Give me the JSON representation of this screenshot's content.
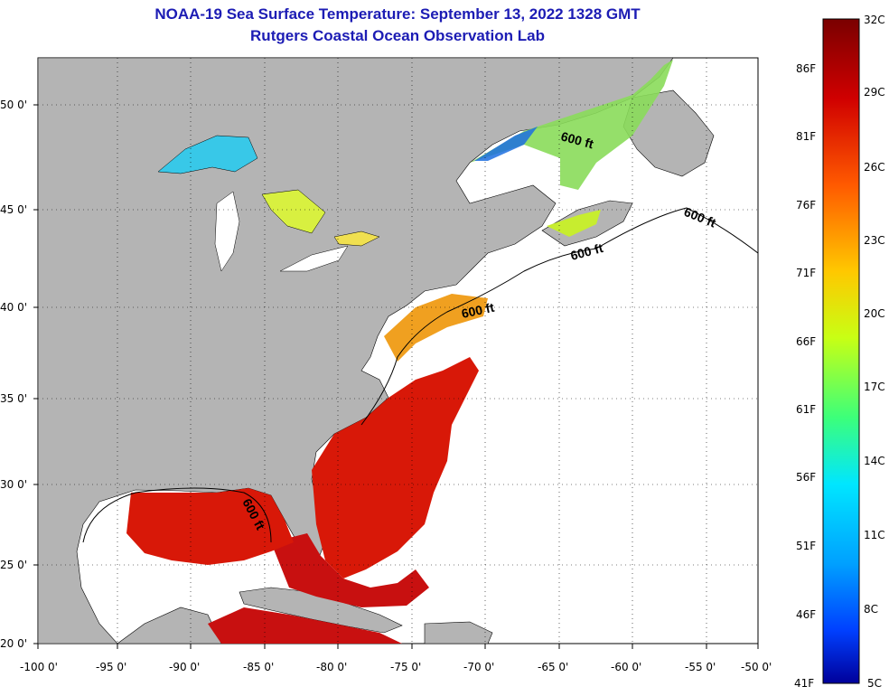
{
  "title": {
    "line1": "NOAA-19 Sea Surface Temperature:  September 13, 2022 1328 GMT",
    "line2": "Rutgers Coastal Ocean Observation Lab"
  },
  "map": {
    "lon_range": [
      -100,
      -50
    ],
    "lat_range": [
      20,
      52.5
    ],
    "lon_ticks": [
      "-100 0'",
      "-95 0'",
      "-90 0'",
      "-85 0'",
      "-80 0'",
      "-75 0'",
      "-70 0'",
      "-65 0'",
      "-60 0'",
      "-55 0'",
      "-50 0'"
    ],
    "lat_ticks": [
      "50 0'",
      "45 0'",
      "40 0'",
      "35 0'",
      "30 0'",
      "25 0'",
      "20 0'"
    ],
    "grid": "dotted",
    "land_color": "#b4b4b4",
    "no_data_color": "#ffffff",
    "contour_labels": [
      "600 ft",
      "600 ft",
      "600 ft",
      "600 ft",
      "600 ft"
    ]
  },
  "colorbar": {
    "celsius_labels": [
      "32C",
      "29C",
      "26C",
      "23C",
      "20C",
      "17C",
      "14C",
      "11C",
      "8C",
      "5C"
    ],
    "fahrenheit_labels": [
      "86F",
      "81F",
      "76F",
      "71F",
      "66F",
      "61F",
      "56F",
      "51F",
      "46F",
      "41F"
    ],
    "colors": [
      "#7a0000",
      "#d00000",
      "#ff5a00",
      "#ffc800",
      "#c8ff14",
      "#3cff7a",
      "#00e6ff",
      "#00a0ff",
      "#0040ff",
      "#00009a"
    ]
  }
}
